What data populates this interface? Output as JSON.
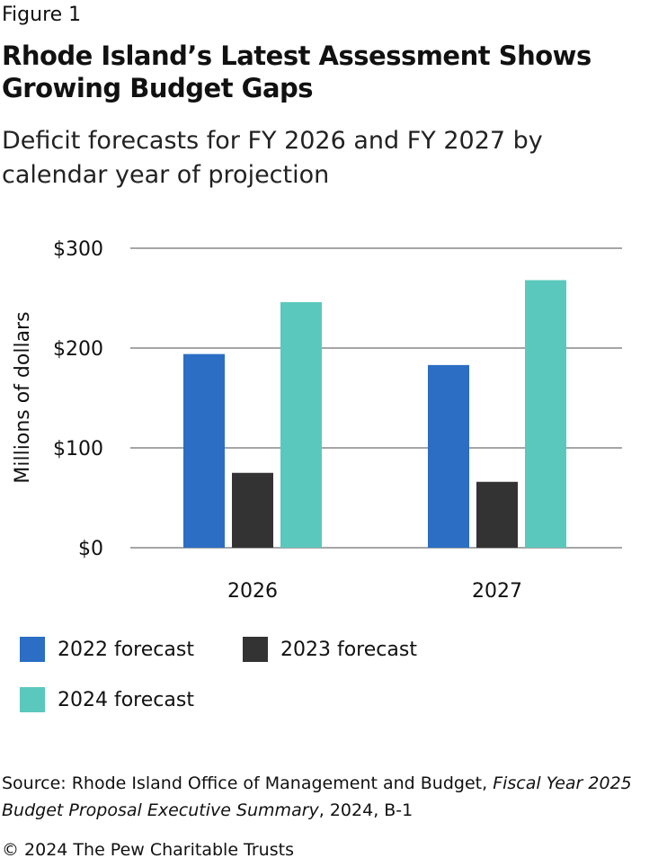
{
  "figure_label": "Figure 1",
  "chart_data": {
    "type": "bar",
    "title": "Rhode Island’s Latest Assessment Shows Growing Budget Gaps",
    "subtitle": "Deficit forecasts for FY 2026 and FY 2027 by calendar year of projection",
    "xlabel": "",
    "ylabel": "Millions of dollars",
    "ylim": [
      0,
      300
    ],
    "yticks": [
      0,
      100,
      200,
      300
    ],
    "ytick_labels": [
      "$0",
      "$100",
      "$200",
      "$300"
    ],
    "grid": true,
    "legend_placement": "bottom",
    "categories": [
      "2026",
      "2027"
    ],
    "series": [
      {
        "name": "2022 forecast",
        "color": "#2b6ec4",
        "values": [
          194,
          183
        ]
      },
      {
        "name": "2023 forecast",
        "color": "#333333",
        "values": [
          75,
          66
        ]
      },
      {
        "name": "2024 forecast",
        "color": "#5bc8bd",
        "values": [
          246,
          268
        ]
      }
    ]
  },
  "source": {
    "prefix": "Source: Rhode Island Office of Management and Budget, ",
    "italic": "Fiscal Year 2025 Budget Proposal Executive Summary",
    "suffix": ", 2024, B-1"
  },
  "copyright": "© 2024 The Pew Charitable Trusts"
}
